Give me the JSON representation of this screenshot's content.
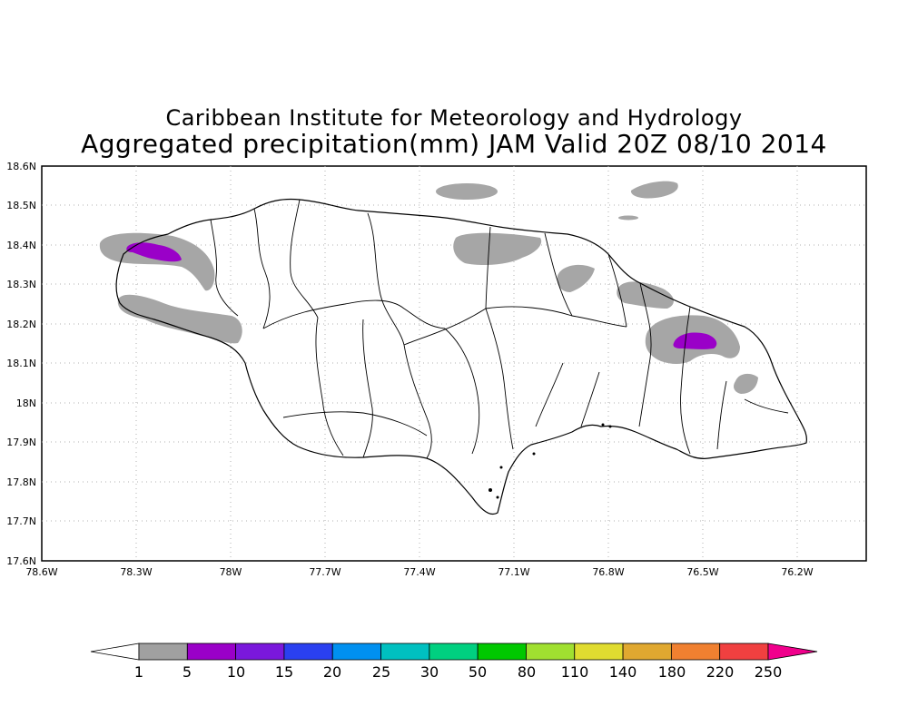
{
  "title": {
    "line1": "Caribbean Institute for Meteorology and Hydrology",
    "line2": "Aggregated precipitation(mm) JAM Valid 20Z 08/10 2014"
  },
  "map": {
    "lon_labels": [
      "78.6W",
      "78.3W",
      "78W",
      "77.7W",
      "77.4W",
      "77.1W",
      "76.8W",
      "76.5W",
      "76.2W"
    ],
    "lat_labels": [
      "18.6N",
      "18.5N",
      "18.4N",
      "18.3N",
      "18.2N",
      "18.1N",
      "18N",
      "17.9N",
      "17.8N",
      "17.7N",
      "17.6N"
    ],
    "lon_range": [
      -78.6,
      -75.98
    ],
    "lat_range": [
      17.6,
      18.6
    ],
    "grid": "dotted",
    "precip_areas": [
      {
        "name": "northwest-coast",
        "level": "1-5"
      },
      {
        "name": "west-coast",
        "level": "1-5"
      },
      {
        "name": "north-central-coast",
        "level": "1-5"
      },
      {
        "name": "offshore-north",
        "level": "1-5"
      },
      {
        "name": "offshore-northeast",
        "level": "1-5"
      },
      {
        "name": "northeast-coast",
        "level": "1-5"
      },
      {
        "name": "eastern-parishes",
        "level": "1-5"
      },
      {
        "name": "northwest-max",
        "level": "5-10"
      },
      {
        "name": "eastern-max",
        "level": "5-10"
      }
    ]
  },
  "colorbar": {
    "labels": [
      "1",
      "5",
      "10",
      "15",
      "20",
      "25",
      "30",
      "50",
      "80",
      "110",
      "140",
      "180",
      "220",
      "250"
    ],
    "colors": [
      "#a0a0a0",
      "#9a00c8",
      "#7a18dc",
      "#2a40f0",
      "#0090f0",
      "#00c0c0",
      "#00d080",
      "#00c800",
      "#a0e030",
      "#e0dc30",
      "#e0a830",
      "#f08030",
      "#f04040",
      "#f0008c"
    ],
    "under_color": "#ffffff"
  }
}
